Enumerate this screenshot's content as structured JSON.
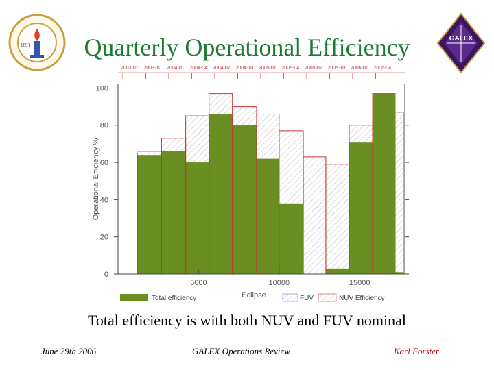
{
  "slide": {
    "title": "Quarterly Operational Efficiency",
    "subtitle": "Total efficiency is with both NUV and FUV nominal",
    "footer_date": "June 29th 2006",
    "footer_center": "GALEX Operations Review",
    "footer_author": "Karl Forster",
    "logo_left_text": "CALIFORNIA INSTITUTE OF TECHNOLOGY",
    "logo_left_year": "1891",
    "logo_right_text": "GALEX"
  },
  "colors": {
    "title": "#1a7a2e",
    "total": "#6b8e23",
    "nuv": "#cc3333",
    "fuv": "#5588cc",
    "author": "#cc0000"
  },
  "chart_data": {
    "type": "bar",
    "xlabel": "Eclipse",
    "ylabel": "Operational Efficiency %",
    "xlim": [
      0,
      17800
    ],
    "ylim": [
      0,
      102
    ],
    "xticks": [
      5000,
      10000,
      15000
    ],
    "yticks": [
      0,
      20,
      40,
      60,
      80,
      100
    ],
    "quarter_labels": [
      "2003-07",
      "2003-10",
      "2004-01",
      "2004-04",
      "2004-07",
      "2004-10",
      "2005-01",
      "2005-04",
      "2005-07",
      "2005-10",
      "2006-01",
      "2006-04"
    ],
    "bins": [
      {
        "x0": 1200,
        "x1": 2700,
        "total": 64,
        "nuv": 65,
        "fuv": 66
      },
      {
        "x0": 2700,
        "x1": 4200,
        "total": 66,
        "nuv": 73,
        "fuv": 0
      },
      {
        "x0": 4200,
        "x1": 5650,
        "total": 60,
        "nuv": 85,
        "fuv": 0
      },
      {
        "x0": 5650,
        "x1": 7100,
        "total": 86,
        "nuv": 97,
        "fuv": 0
      },
      {
        "x0": 7100,
        "x1": 8600,
        "total": 80,
        "nuv": 90,
        "fuv": 0
      },
      {
        "x0": 8600,
        "x1": 10000,
        "total": 62,
        "nuv": 86,
        "fuv": 0
      },
      {
        "x0": 10000,
        "x1": 11500,
        "total": 38,
        "nuv": 77,
        "fuv": 0
      },
      {
        "x0": 11500,
        "x1": 12900,
        "total": 0,
        "nuv": 63,
        "fuv": 0
      },
      {
        "x0": 12900,
        "x1": 14350,
        "total": 3,
        "nuv": 59,
        "fuv": 0
      },
      {
        "x0": 14350,
        "x1": 15800,
        "total": 71,
        "nuv": 80,
        "fuv": 0
      },
      {
        "x0": 15800,
        "x1": 17200,
        "total": 97,
        "nuv": 97,
        "fuv": 0
      },
      {
        "x0": 17200,
        "x1": 18600,
        "total": 1,
        "nuv": 87,
        "fuv": 0
      }
    ],
    "legend": [
      "Total efficiency",
      "FUV",
      "NUV Efficiency"
    ],
    "legend_placement": "bottom"
  }
}
